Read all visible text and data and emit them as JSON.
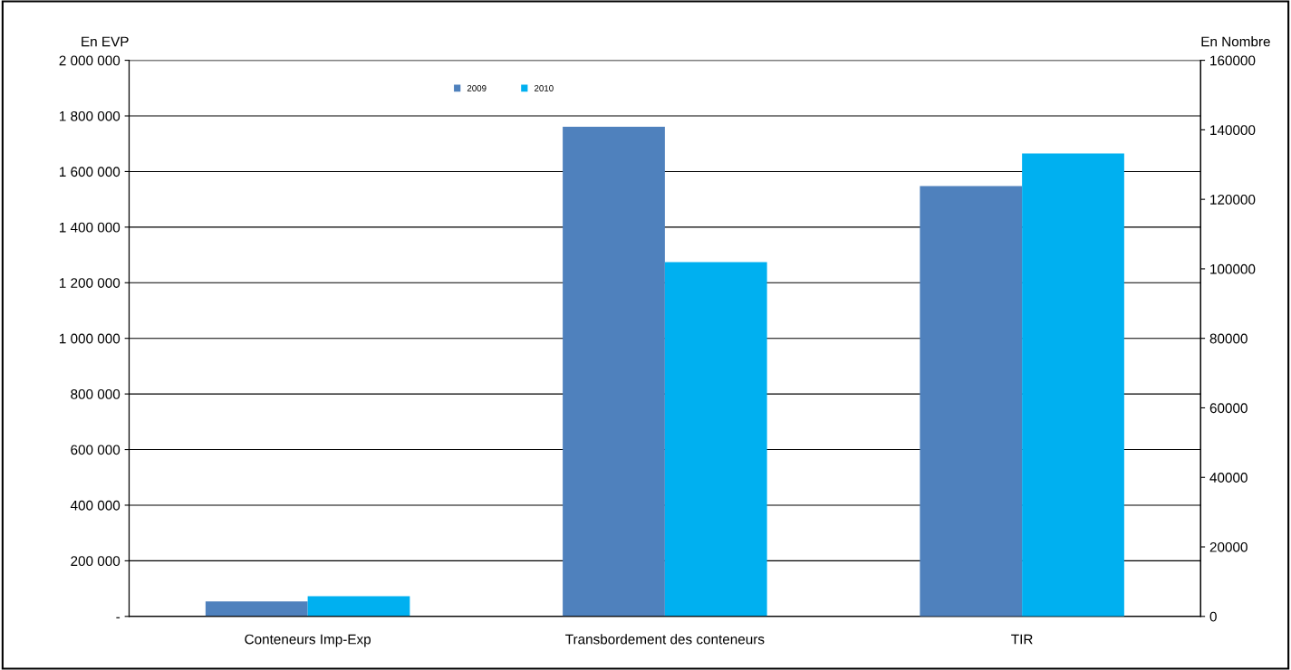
{
  "chart_data": {
    "type": "bar",
    "ylabel": "En EVP",
    "y2label": "En Nombre",
    "categories": [
      "Conteneurs Imp-Exp",
      "Transbordement des conteneurs",
      "TIR"
    ],
    "series": [
      {
        "name": "2009",
        "color": "#4f81bd",
        "values": [
          54000,
          1761000,
          null
        ]
      },
      {
        "name": "2010",
        "color": "#00b0f0",
        "values": [
          73000,
          1274000,
          null
        ]
      },
      {
        "color": "#4f81bd",
        "axis": "y2",
        "values": [
          null,
          null,
          123800
        ]
      },
      {
        "color": "#00b0f0",
        "axis": "y2",
        "values": [
          null,
          null,
          133200
        ]
      }
    ],
    "ylim": [
      0,
      2000000
    ],
    "yticks": [
      {
        "value": 0,
        "label": "-"
      },
      {
        "value": 200000,
        "label": "200 000"
      },
      {
        "value": 400000,
        "label": "400 000"
      },
      {
        "value": 600000,
        "label": "600 000"
      },
      {
        "value": 800000,
        "label": "800 000"
      },
      {
        "value": 1000000,
        "label": "1 000 000"
      },
      {
        "value": 1200000,
        "label": "1 200 000"
      },
      {
        "value": 1400000,
        "label": "1 400 000"
      },
      {
        "value": 1600000,
        "label": "1 600 000"
      },
      {
        "value": 1800000,
        "label": "1 800 000"
      },
      {
        "value": 2000000,
        "label": "2 000 000"
      }
    ],
    "y2lim": [
      0,
      160000
    ],
    "y2ticks": [
      0,
      20000,
      40000,
      60000,
      80000,
      100000,
      120000,
      140000,
      160000
    ],
    "grid": "y",
    "legend": "top"
  }
}
